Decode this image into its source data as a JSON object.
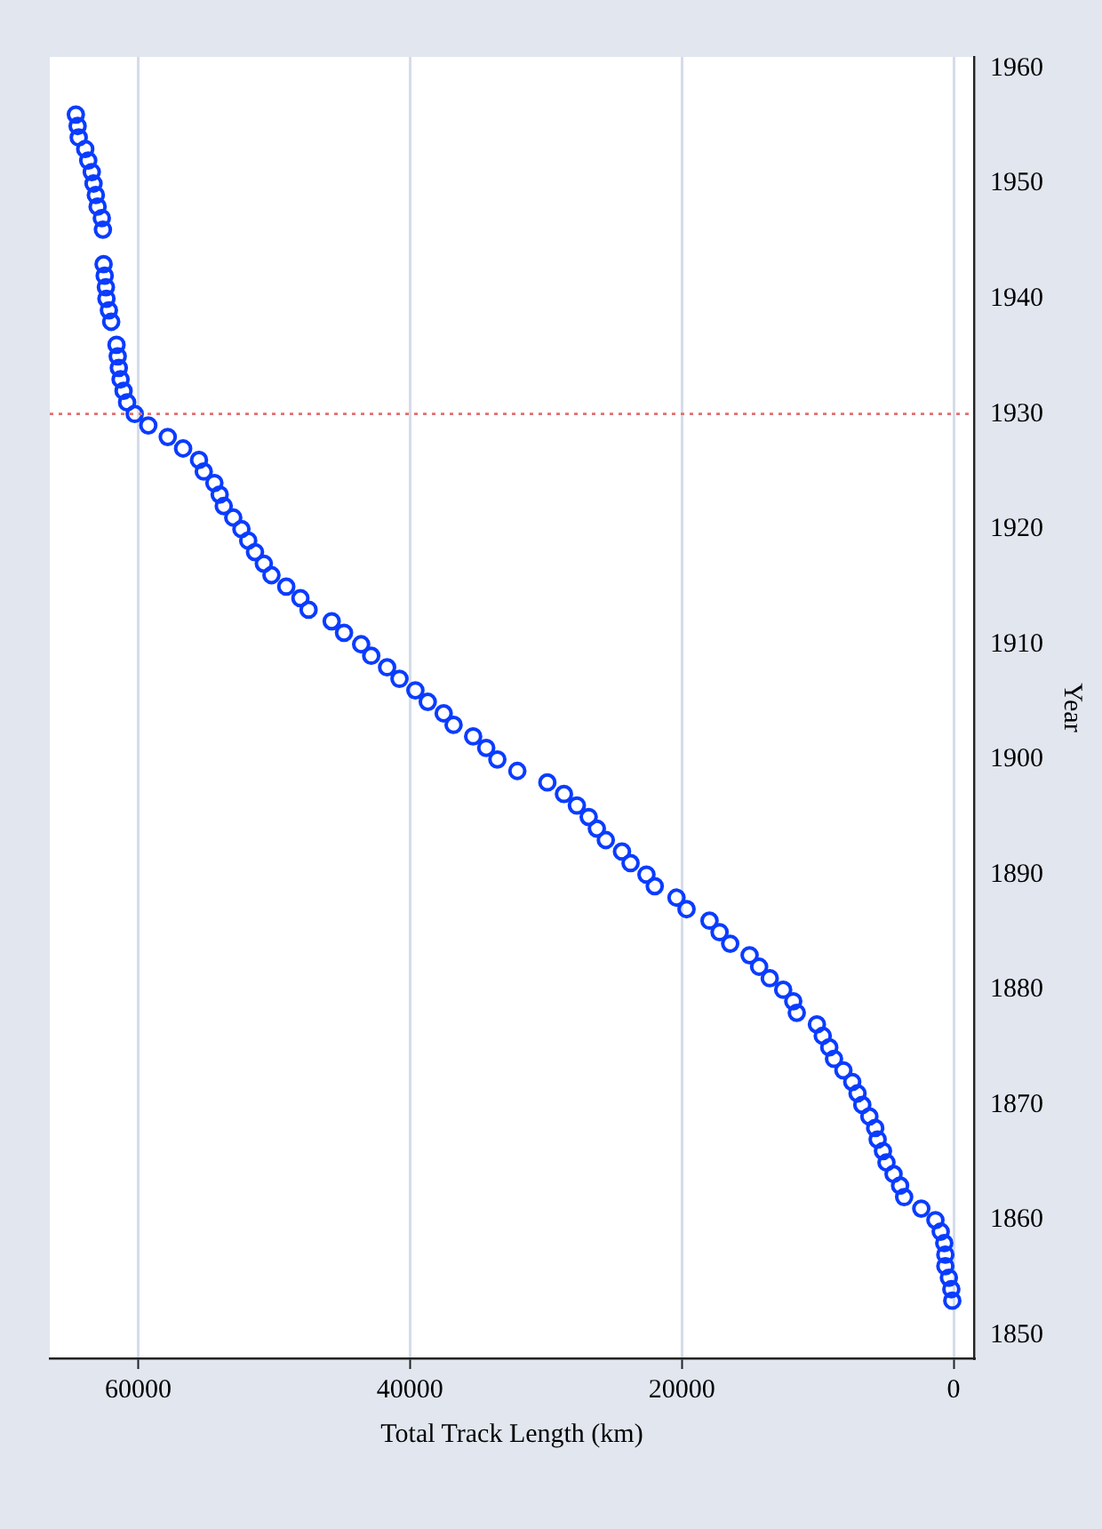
{
  "chart_data": {
    "type": "scatter",
    "orientation": "horizontal",
    "xlabel": "Total Track Length (km)",
    "ylabel": "Year",
    "marker": "circle",
    "grid": "x",
    "legend": false,
    "xlim": [
      66500,
      -1500
    ],
    "xticks": [
      0,
      20000,
      40000,
      60000
    ],
    "ylim": [
      1848,
      1961
    ],
    "yticks": [
      1850,
      1860,
      1870,
      1880,
      1890,
      1900,
      1910,
      1920,
      1930,
      1940,
      1950,
      1960
    ],
    "ref_lines": [
      {
        "axis": "y",
        "value": 1930,
        "color": "#e07070",
        "line_style": "dotted"
      }
    ],
    "series": [
      {
        "color": "#0a3cff",
        "x": [
          1853,
          1854,
          1855,
          1856,
          1857,
          1858,
          1859,
          1860,
          1861,
          1862,
          1863,
          1864,
          1865,
          1866,
          1867,
          1868,
          1869,
          1870,
          1871,
          1872,
          1873,
          1874,
          1875,
          1876,
          1877,
          1878,
          1879,
          1880,
          1881,
          1882,
          1883,
          1884,
          1885,
          1886,
          1887,
          1888,
          1889,
          1890,
          1891,
          1892,
          1893,
          1894,
          1895,
          1896,
          1897,
          1898,
          1899,
          1900,
          1901,
          1902,
          1903,
          1904,
          1905,
          1906,
          1907,
          1908,
          1909,
          1910,
          1911,
          1912,
          1913,
          1914,
          1915,
          1916,
          1917,
          1918,
          1919,
          1920,
          1921,
          1922,
          1923,
          1924,
          1925,
          1926,
          1927,
          1928,
          1929,
          1930,
          1931,
          1932,
          1933,
          1934,
          1935,
          1936,
          1938,
          1939,
          1940,
          1941,
          1942,
          1943,
          1946,
          1947,
          1948,
          1949,
          1950,
          1951,
          1952,
          1953,
          1954,
          1955,
          1956
        ],
        "values": [
          100,
          170,
          350,
          610,
          610,
          690,
          950,
          1340,
          2380,
          3640,
          3940,
          4420,
          4940,
          5200,
          5590,
          5770,
          6200,
          6720,
          7070,
          7460,
          8110,
          8800,
          9150,
          9630,
          10060,
          11540,
          11800,
          12540,
          13530,
          14310,
          15010,
          16440,
          17220,
          17960,
          19650,
          20390,
          21990,
          22600,
          23770,
          24400,
          25590,
          26250,
          26850,
          27720,
          28670,
          29890,
          32100,
          33570,
          34390,
          35350,
          36790,
          37520,
          38690,
          39600,
          40770,
          41680,
          42850,
          43590,
          44850,
          45760,
          47460,
          48060,
          49100,
          50190,
          50750,
          51400,
          51900,
          52400,
          53000,
          53700,
          54000,
          54390,
          55170,
          55520,
          56690,
          57820,
          59250,
          60250,
          60810,
          61070,
          61290,
          61420,
          61500,
          61590,
          61980,
          62150,
          62330,
          62370,
          62460,
          62540,
          62590,
          62670,
          62980,
          63110,
          63280,
          63410,
          63670,
          63890,
          64370,
          64450,
          64580
        ]
      }
    ]
  }
}
